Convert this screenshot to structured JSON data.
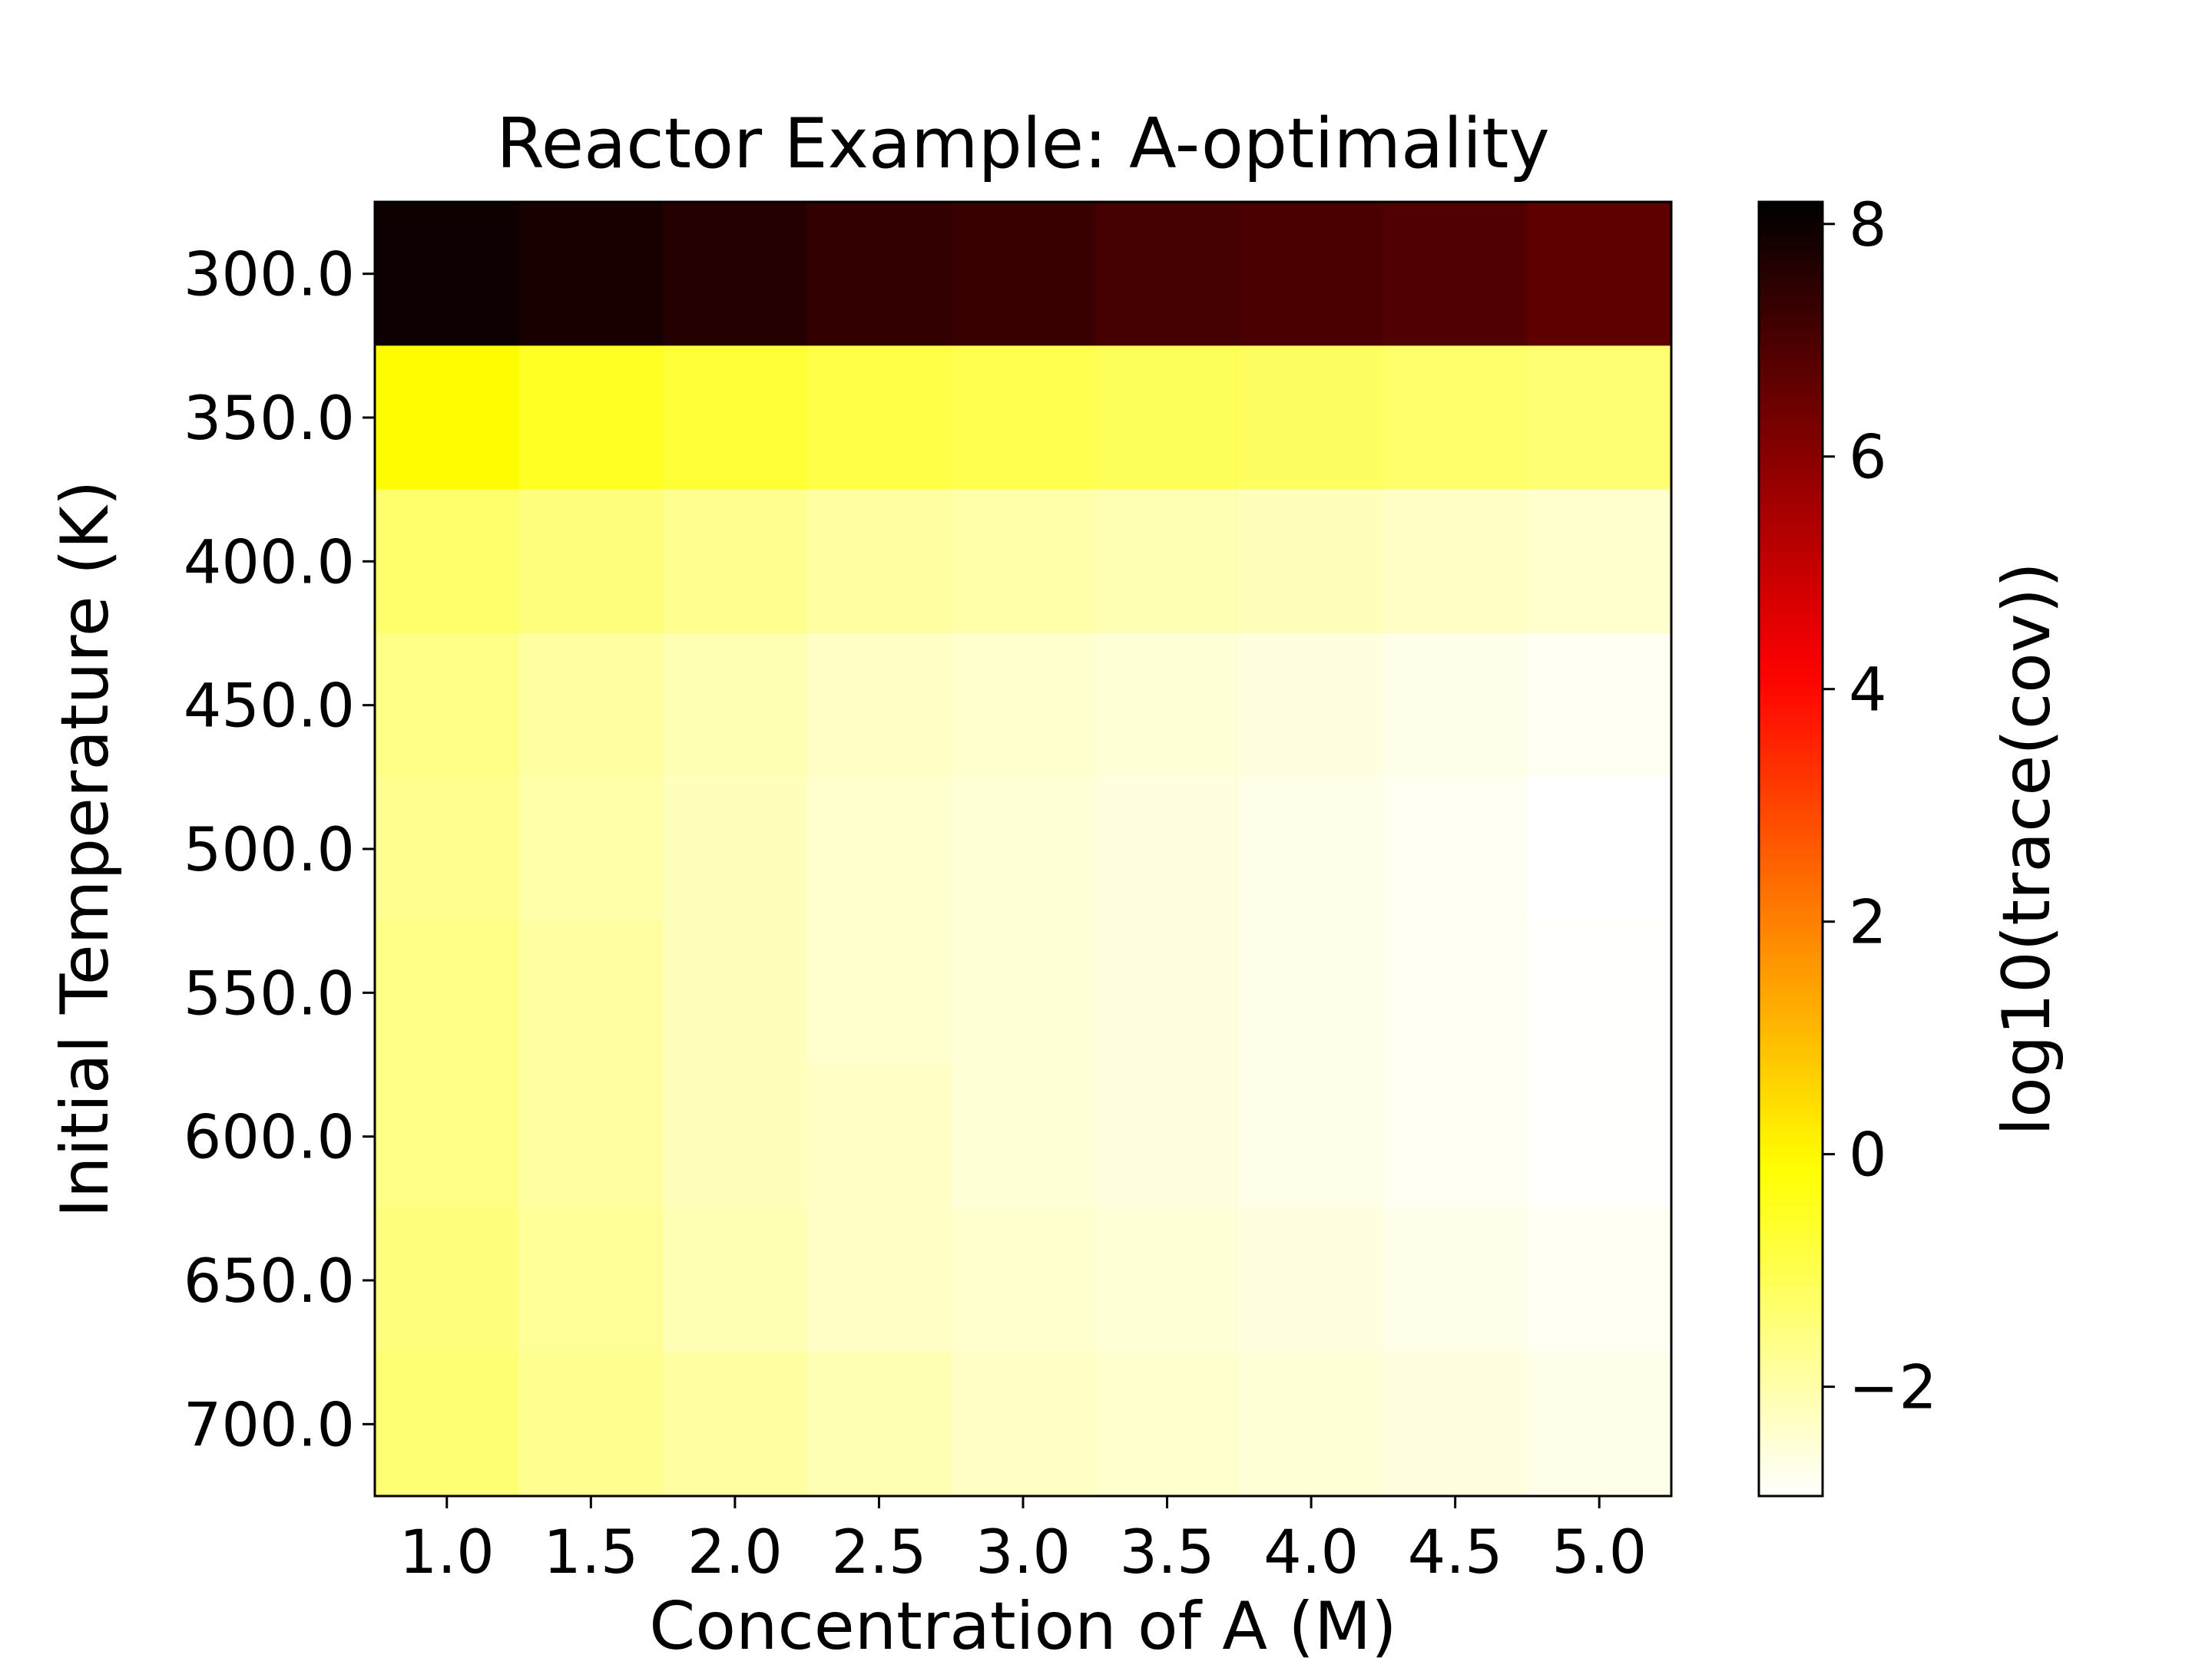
{
  "chart_data": {
    "type": "heatmap",
    "title": "Reactor Example: A-optimality",
    "x_label": "Concentration of A (M)",
    "y_label": "Initial Temperature (K)",
    "x": [
      "1.0",
      "1.5",
      "2.0",
      "2.5",
      "3.0",
      "3.5",
      "4.0",
      "4.5",
      "5.0"
    ],
    "y": [
      "300.0",
      "350.0",
      "400.0",
      "450.0",
      "500.0",
      "550.0",
      "600.0",
      "650.0",
      "700.0"
    ],
    "values": [
      [
        7.97,
        7.8,
        7.6,
        7.4,
        7.3,
        7.1,
        7.0,
        6.9,
        6.69
      ],
      [
        -0.05,
        -0.5,
        -0.7,
        -0.9,
        -1.0,
        -1.1,
        -1.2,
        -1.3,
        -1.4
      ],
      [
        -1.3,
        -1.5,
        -1.7,
        -1.9,
        -2.0,
        -2.1,
        -2.2,
        -2.3,
        -2.4
      ],
      [
        -1.6,
        -1.9,
        -2.1,
        -2.3,
        -2.4,
        -2.5,
        -2.6,
        -2.7,
        -2.8
      ],
      [
        -1.7,
        -2.0,
        -2.2,
        -2.4,
        -2.5,
        -2.6,
        -2.7,
        -2.8,
        -2.94
      ],
      [
        -1.6,
        -1.9,
        -2.2,
        -2.4,
        -2.5,
        -2.6,
        -2.7,
        -2.8,
        -2.9
      ],
      [
        -1.6,
        -1.9,
        -2.2,
        -2.3,
        -2.5,
        -2.6,
        -2.7,
        -2.8,
        -2.9
      ],
      [
        -1.5,
        -1.8,
        -2.1,
        -2.3,
        -2.4,
        -2.5,
        -2.6,
        -2.7,
        -2.8
      ],
      [
        -1.4,
        -1.7,
        -1.9,
        -2.1,
        -2.3,
        -2.4,
        -2.5,
        -2.6,
        -2.7
      ]
    ],
    "colormap": "hot_r",
    "colorbar_label": "log10(trace(cov))",
    "clim": [
      -2.94,
      8.19
    ],
    "cticks": [
      {
        "value": -2,
        "label": "−2"
      },
      0,
      2,
      4,
      6,
      8
    ]
  }
}
